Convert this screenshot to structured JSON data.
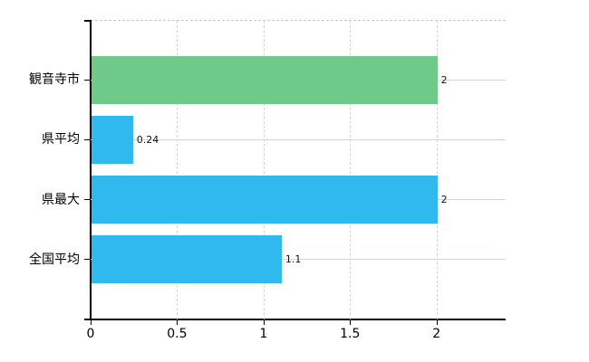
{
  "chart_data": {
    "type": "bar",
    "orientation": "horizontal",
    "title": "",
    "xlabel": "",
    "ylabel": "",
    "categories": [
      "観音寺市",
      "県平均",
      "県最大",
      "全国平均"
    ],
    "values": [
      2,
      0.24,
      2,
      1.1
    ],
    "value_labels": [
      "2",
      "0.24",
      "2",
      "1.1"
    ],
    "bar_colors": [
      "#6fc988",
      "#30b9ef",
      "#30b9ef",
      "#30b9ef"
    ],
    "x_tick_values": [
      0,
      0.5,
      1,
      1.5,
      2
    ],
    "x_tick_labels": [
      "0",
      "0.5",
      "1",
      "1.5",
      "2"
    ],
    "xlim": [
      0,
      2.4
    ],
    "grid": true,
    "legend_position": "none",
    "colors": {
      "highlight_bar": "#6fc988",
      "default_bar": "#30b9ef",
      "gridline": "#d4d4d4",
      "axis": "#000000",
      "background": "#ffffff",
      "text": "#000000"
    }
  }
}
